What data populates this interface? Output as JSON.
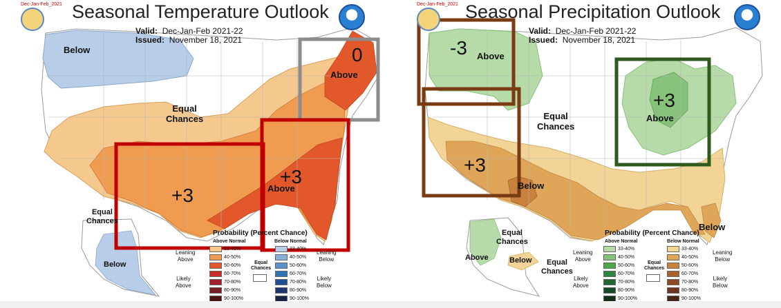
{
  "temperature": {
    "tag": "Dec-Jan-Feb_2021",
    "title": "Seasonal Temperature Outlook",
    "valid_label": "Valid:",
    "valid_value": "Dec-Jan-Feb 2021-22",
    "issued_label": "Issued:",
    "issued_value": "November 18, 2021",
    "labels": {
      "below_nw": "Below",
      "equal_center": "Equal\nChances",
      "above_ne": "Above",
      "above_se": "Above",
      "equal_alaska": "Equal\nChances",
      "below_alaska": "Below"
    },
    "annotations": {
      "ne": "0",
      "sw": "+3",
      "se": "+3"
    },
    "legend": {
      "title": "Probability (Percent Chance)",
      "above_header": "Above Normal",
      "below_header": "Below Normal",
      "leaning_above": "Leaning\nAbove",
      "leaning_below": "Leaning\nBelow",
      "likely_above": "Likely\nAbove",
      "likely_below": "Likely\nBelow",
      "equal": "Equal\nChances",
      "above_rows": [
        "33-40%",
        "40-50%",
        "50-60%",
        "60-70%",
        "70-80%",
        "80-90%",
        "90-100%"
      ],
      "below_rows": [
        "33-40%",
        "40-50%",
        "50-60%",
        "60-70%",
        "70-80%",
        "80-90%",
        "90-100%"
      ],
      "above_colors": [
        "#f5c88d",
        "#ef9b50",
        "#e2582b",
        "#c92b28",
        "#a31f2b",
        "#7a1d27",
        "#4d1414"
      ],
      "below_colors": [
        "#b7cde8",
        "#86b0dc",
        "#5a93cc",
        "#2f73b8",
        "#1f4f96",
        "#1d3670",
        "#1a2248"
      ]
    }
  },
  "precipitation": {
    "tag": "Dec-Jan-Feb_2021",
    "title": "Seasonal Precipitation Outlook",
    "valid_label": "Valid:",
    "valid_value": "Dec-Jan-Feb 2021-22",
    "issued_label": "Issued:",
    "issued_value": "November 18, 2021",
    "labels": {
      "above_nw": "Above",
      "equal_center": "Equal\nChances",
      "above_gl": "Above",
      "below_tx": "Below",
      "below_fl": "Below",
      "equal_ak_top": "Equal\nChances",
      "above_ak": "Above",
      "equal_ak_bottom": "Equal\nChances",
      "below_ak": "Below"
    },
    "annotations": {
      "nw": "-3",
      "gl": "+3",
      "sw": "+3"
    },
    "legend": {
      "title": "Probability (Percent Chance)",
      "above_header": "Above Normal",
      "below_header": "Below Normal",
      "leaning_above": "Leaning\nAbove",
      "leaning_below": "Leaning\nBelow",
      "likely_above": "Likely\nAbove",
      "likely_below": "Likely\nBelow",
      "equal": "Equal\nChances",
      "above_rows": [
        "33-40%",
        "40-50%",
        "50-60%",
        "60-70%",
        "70-80%",
        "80-90%",
        "90-100%"
      ],
      "below_rows": [
        "33-40%",
        "40-50%",
        "50-60%",
        "60-70%",
        "70-80%",
        "80-90%",
        "90-100%"
      ],
      "above_colors": [
        "#b6dba9",
        "#86c27a",
        "#4fa54a",
        "#2e8440",
        "#236535",
        "#1b4a2a",
        "#11301c"
      ],
      "below_colors": [
        "#f2d596",
        "#dfa65a",
        "#c9823e",
        "#a9612e",
        "#8a4a27",
        "#6b3720",
        "#4a2516"
      ]
    }
  }
}
